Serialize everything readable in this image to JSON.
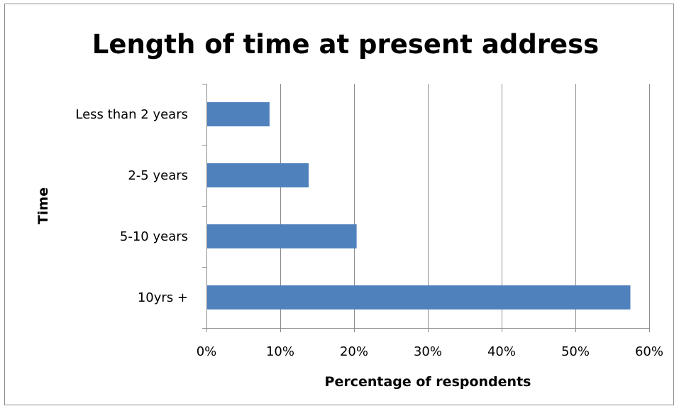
{
  "chart_data": {
    "type": "bar",
    "orientation": "horizontal",
    "title": "Length of time at present address",
    "xlabel": "Percentage of respondents",
    "ylabel": "Time",
    "categories": [
      "Less than 2 years",
      "2-5 years",
      "5-10 years",
      "10yrs +"
    ],
    "values": [
      8.5,
      13.8,
      20.3,
      57.4
    ],
    "xlim": [
      0,
      60
    ],
    "xticks": [
      0,
      10,
      20,
      30,
      40,
      50,
      60
    ],
    "xtick_labels": [
      "0%",
      "10%",
      "20%",
      "30%",
      "40%",
      "50%",
      "60%"
    ],
    "grid": true,
    "legend": "none",
    "bar_color": "#4f81bd"
  }
}
